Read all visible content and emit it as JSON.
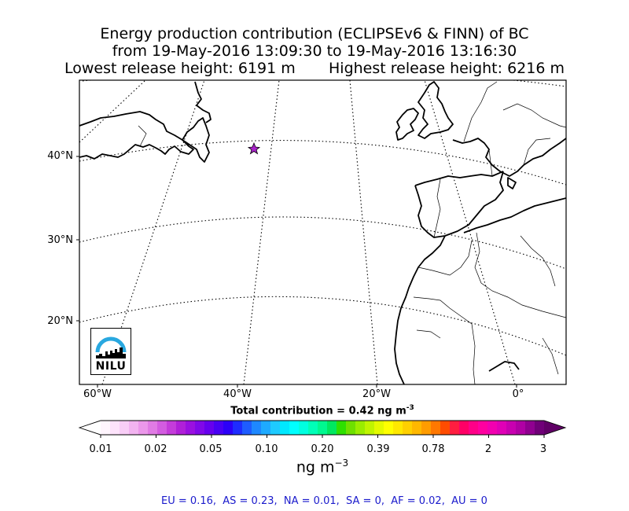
{
  "title": {
    "line1": "Energy production contribution (ECLIPSEv6 & FINN) of BC",
    "line2": "from 19-May-2016 13:09:30 to 19-May-2016 13:16:30",
    "line3": "Lowest release height: 6191 m       Highest release height: 6216 m"
  },
  "map": {
    "lat_labels": [
      "40°N",
      "30°N",
      "20°N"
    ],
    "lon_labels": [
      "60°W",
      "40°W",
      "20°W",
      "0°"
    ],
    "release_marker": {
      "lat": 41,
      "lon": -37.5,
      "color": "#aa22cc"
    },
    "logo_text": "NILU",
    "logo_color": "#29a8e0"
  },
  "colorbar": {
    "title": "Total contribution = 0.42 ng m",
    "title_exp": "-3",
    "ticks": [
      "0.01",
      "0.02",
      "0.05",
      "0.10",
      "0.20",
      "0.39",
      "0.78",
      "2",
      "3"
    ],
    "units": "ng m",
    "units_exp": "−3",
    "colors": [
      "#fff5fd",
      "#fde3fb",
      "#f8cdf6",
      "#f2b3f0",
      "#eb97ea",
      "#e07be4",
      "#d35ce0",
      "#c43cda",
      "#b020d8",
      "#9a10e0",
      "#8008e8",
      "#6600ee",
      "#4800f4",
      "#2c00f8",
      "#1e2cff",
      "#1e5cff",
      "#1e88ff",
      "#1eaaff",
      "#1ecaff",
      "#00e8ff",
      "#00ffff",
      "#00ffe0",
      "#00ffb8",
      "#00f890",
      "#00e860",
      "#2ee000",
      "#6ee000",
      "#9aec00",
      "#c0f400",
      "#e4fa00",
      "#ffff00",
      "#ffe800",
      "#ffd000",
      "#ffb800",
      "#ff9c00",
      "#ff7800",
      "#ff4c00",
      "#ff1e40",
      "#ff0066",
      "#ff0088",
      "#ff00a0",
      "#f200b0",
      "#e000b6",
      "#c800b0",
      "#b000a4",
      "#900090",
      "#700078"
    ],
    "overflow_color": "#600066"
  },
  "summary": "EU = 0.16,  AS = 0.23,  NA = 0.01,  SA = 0,  AF = 0.02,  AU = 0"
}
